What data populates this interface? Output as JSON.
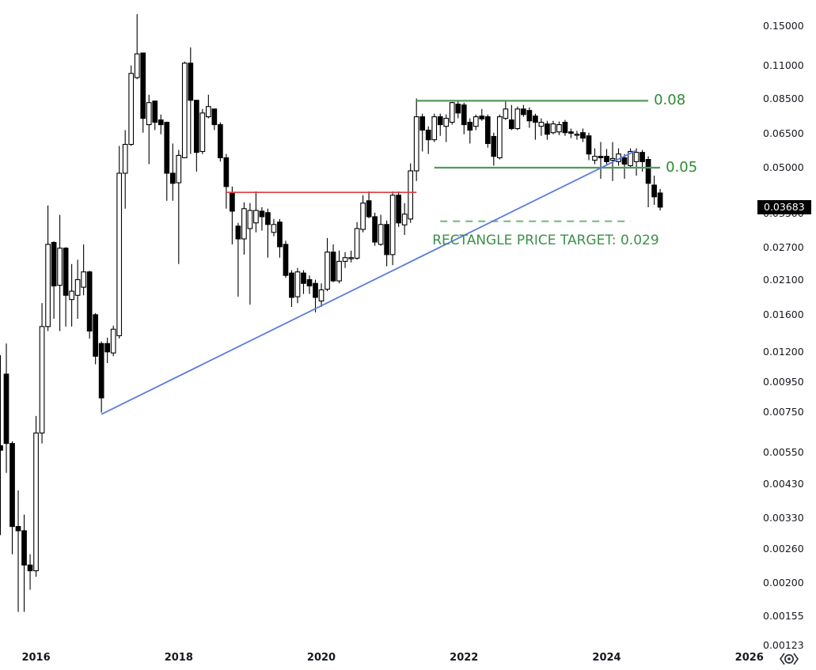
{
  "chart_data": {
    "type": "candlestick",
    "scale": "logarithmic",
    "background": "#ffffff",
    "price_axis": {
      "labels": [
        "0.15000",
        "0.11000",
        "0.08500",
        "0.06500",
        "0.05000",
        "0.03500",
        "0.02700",
        "0.02100",
        "0.01600",
        "0.01200",
        "0.00950",
        "0.00750",
        "0.00550",
        "0.00430",
        "0.00330",
        "0.00260",
        "0.00200",
        "0.00155",
        "0.00123"
      ],
      "last_price": "0.03683",
      "last_price_bg": "#000000",
      "last_price_fg": "#ffffff"
    },
    "time_axis": {
      "labels": [
        "2016",
        "2018",
        "2020",
        "2022",
        "2024",
        "2026"
      ]
    },
    "colors": {
      "bull_fill": "#ffffff",
      "bear_fill": "#000000",
      "outline": "#000000",
      "green_line": "#4f9c58",
      "green_label_text": "#2e8b34",
      "green_dashed": "#80bd88",
      "green_target_text": "#3d9048",
      "red_line": "#e23b41",
      "blue_line": "#5b7ce2"
    },
    "candles": [
      [
        "2015-07",
        0.0058,
        0.0117,
        0.0029,
        0.0056
      ],
      [
        "2015-08",
        0.0101,
        0.0128,
        0.0047,
        0.0059
      ],
      [
        "2015-09",
        0.0059,
        0.006,
        0.0025,
        0.0031
      ],
      [
        "2015-10",
        0.0031,
        0.0041,
        0.0016,
        0.003
      ],
      [
        "2015-11",
        0.003,
        0.0034,
        0.0016,
        0.0023
      ],
      [
        "2015-12",
        0.0023,
        0.0025,
        0.0019,
        0.0022
      ],
      [
        "2016-01",
        0.0022,
        0.0073,
        0.0021,
        0.0064
      ],
      [
        "2016-02",
        0.0064,
        0.0175,
        0.0059,
        0.0146
      ],
      [
        "2016-03",
        0.0146,
        0.0373,
        0.0141,
        0.0276
      ],
      [
        "2016-04",
        0.028,
        0.0283,
        0.0155,
        0.02
      ],
      [
        "2016-05",
        0.0201,
        0.0347,
        0.0141,
        0.0268
      ],
      [
        "2016-06",
        0.0268,
        0.027,
        0.0146,
        0.0186
      ],
      [
        "2016-07",
        0.018,
        0.0237,
        0.0146,
        0.0192
      ],
      [
        "2016-08",
        0.0186,
        0.0245,
        0.0155,
        0.021
      ],
      [
        "2016-09",
        0.0198,
        0.0276,
        0.0186,
        0.0223
      ],
      [
        "2016-10",
        0.0223,
        0.0225,
        0.0133,
        0.0141
      ],
      [
        "2016-11",
        0.016,
        0.0162,
        0.0109,
        0.0116
      ],
      [
        "2016-12",
        0.0128,
        0.013,
        0.0075,
        0.0084
      ],
      [
        "2017-01",
        0.0128,
        0.0134,
        0.011,
        0.012
      ],
      [
        "2017-02",
        0.0119,
        0.0147,
        0.0116,
        0.0143
      ],
      [
        "2017-03",
        0.0136,
        0.0592,
        0.0133,
        0.0479
      ],
      [
        "2017-04",
        0.0479,
        0.0669,
        0.0364,
        0.0599
      ],
      [
        "2017-05",
        0.0599,
        0.1104,
        0.0592,
        0.1038
      ],
      [
        "2017-06",
        0.1005,
        0.1644,
        0.0993,
        0.1208
      ],
      [
        "2017-07",
        0.1216,
        0.122,
        0.0656,
        0.0733
      ],
      [
        "2017-08",
        0.0698,
        0.088,
        0.0514,
        0.0828
      ],
      [
        "2017-09",
        0.0838,
        0.084,
        0.0669,
        0.0711
      ],
      [
        "2017-10",
        0.0724,
        0.0755,
        0.0648,
        0.0698
      ],
      [
        "2017-11",
        0.0711,
        0.0715,
        0.0387,
        0.0479
      ],
      [
        "2017-12",
        0.0479,
        0.0603,
        0.0387,
        0.0443
      ],
      [
        "2018-01",
        0.0445,
        0.0574,
        0.0237,
        0.055
      ],
      [
        "2018-02",
        0.054,
        0.1138,
        0.0538,
        0.1124
      ],
      [
        "2018-03",
        0.1124,
        0.127,
        0.0556,
        0.0843
      ],
      [
        "2018-04",
        0.0843,
        0.0845,
        0.0485,
        0.0563
      ],
      [
        "2018-05",
        0.0567,
        0.0788,
        0.0556,
        0.0764
      ],
      [
        "2018-06",
        0.0742,
        0.088,
        0.0733,
        0.0803
      ],
      [
        "2018-07",
        0.0788,
        0.079,
        0.0669,
        0.0698
      ],
      [
        "2018-08",
        0.0698,
        0.0711,
        0.0524,
        0.054
      ],
      [
        "2018-09",
        0.054,
        0.0556,
        0.0364,
        0.0432
      ],
      [
        "2018-10",
        0.0411,
        0.0432,
        0.0276,
        0.0357
      ],
      [
        "2018-11",
        0.0318,
        0.0326,
        0.0184,
        0.0288
      ],
      [
        "2018-12",
        0.0288,
        0.0382,
        0.0255,
        0.0364
      ],
      [
        "2019-01",
        0.0312,
        0.038,
        0.0173,
        0.0359
      ],
      [
        "2019-02",
        0.0326,
        0.0416,
        0.0303,
        0.0359
      ],
      [
        "2019-03",
        0.0357,
        0.0368,
        0.0307,
        0.0342
      ],
      [
        "2019-04",
        0.0353,
        0.0364,
        0.0249,
        0.0322
      ],
      [
        "2019-05",
        0.0303,
        0.0336,
        0.0294,
        0.0322
      ],
      [
        "2019-06",
        0.0328,
        0.0336,
        0.0249,
        0.0271
      ],
      [
        "2019-07",
        0.0276,
        0.0284,
        0.0213,
        0.0217
      ],
      [
        "2019-08",
        0.0221,
        0.0226,
        0.017,
        0.0183
      ],
      [
        "2019-09",
        0.0184,
        0.023,
        0.0175,
        0.0223
      ],
      [
        "2019-10",
        0.0221,
        0.0226,
        0.0188,
        0.0204
      ],
      [
        "2019-11",
        0.021,
        0.0217,
        0.0188,
        0.02
      ],
      [
        "2019-12",
        0.0204,
        0.021,
        0.0163,
        0.0183
      ],
      [
        "2020-01",
        0.0178,
        0.0204,
        0.017,
        0.0194
      ],
      [
        "2020-02",
        0.0195,
        0.029,
        0.0192,
        0.026
      ],
      [
        "2020-03",
        0.026,
        0.0276,
        0.0206,
        0.0208
      ],
      [
        "2020-04",
        0.0208,
        0.0263,
        0.0204,
        0.0242
      ],
      [
        "2020-05",
        0.0242,
        0.026,
        0.023,
        0.0249
      ],
      [
        "2020-06",
        0.0247,
        0.0263,
        0.024,
        0.0249
      ],
      [
        "2020-07",
        0.0248,
        0.0328,
        0.0245,
        0.0312
      ],
      [
        "2020-08",
        0.031,
        0.0404,
        0.0303,
        0.038
      ],
      [
        "2020-09",
        0.0387,
        0.0416,
        0.0338,
        0.0342
      ],
      [
        "2020-10",
        0.0342,
        0.0353,
        0.0273,
        0.0281
      ],
      [
        "2020-11",
        0.0276,
        0.0347,
        0.0273,
        0.0322
      ],
      [
        "2020-12",
        0.0322,
        0.0332,
        0.0233,
        0.0255
      ],
      [
        "2021-01",
        0.0255,
        0.0416,
        0.0235,
        0.0404
      ],
      [
        "2021-02",
        0.0404,
        0.0416,
        0.0316,
        0.0326
      ],
      [
        "2021-03",
        0.0321,
        0.038,
        0.0297,
        0.0349
      ],
      [
        "2021-04",
        0.0336,
        0.0517,
        0.0326,
        0.0488
      ],
      [
        "2021-05",
        0.0488,
        0.0855,
        0.0451,
        0.0742
      ],
      [
        "2021-06",
        0.0742,
        0.076,
        0.0567,
        0.0669
      ],
      [
        "2021-07",
        0.0669,
        0.0689,
        0.0556,
        0.0621
      ],
      [
        "2021-08",
        0.0621,
        0.076,
        0.061,
        0.0742
      ],
      [
        "2021-09",
        0.0742,
        0.076,
        0.064,
        0.0698
      ],
      [
        "2021-10",
        0.0689,
        0.0755,
        0.061,
        0.0733
      ],
      [
        "2021-11",
        0.0711,
        0.0832,
        0.0698,
        0.0828
      ],
      [
        "2021-12",
        0.0818,
        0.0838,
        0.0733,
        0.0764
      ],
      [
        "2022-01",
        0.0813,
        0.0828,
        0.0648,
        0.0698
      ],
      [
        "2022-02",
        0.0711,
        0.0733,
        0.0603,
        0.0669
      ],
      [
        "2022-03",
        0.0689,
        0.0755,
        0.0669,
        0.0742
      ],
      [
        "2022-04",
        0.0746,
        0.0788,
        0.0719,
        0.073
      ],
      [
        "2022-05",
        0.0742,
        0.0755,
        0.0584,
        0.0603
      ],
      [
        "2022-06",
        0.0637,
        0.0656,
        0.0508,
        0.0546
      ],
      [
        "2022-07",
        0.054,
        0.0755,
        0.0533,
        0.0742
      ],
      [
        "2022-08",
        0.0733,
        0.0838,
        0.0724,
        0.0788
      ],
      [
        "2022-09",
        0.0724,
        0.0813,
        0.0669,
        0.0677
      ],
      [
        "2022-10",
        0.0677,
        0.0803,
        0.0669,
        0.0788
      ],
      [
        "2022-11",
        0.0788,
        0.0813,
        0.0742,
        0.0755
      ],
      [
        "2022-12",
        0.0779,
        0.0798,
        0.0681,
        0.0719
      ],
      [
        "2023-01",
        0.0746,
        0.076,
        0.0621,
        0.0711
      ],
      [
        "2023-02",
        0.0689,
        0.0733,
        0.064,
        0.0711
      ],
      [
        "2023-03",
        0.0702,
        0.0719,
        0.0621,
        0.0648
      ],
      [
        "2023-04",
        0.0656,
        0.0719,
        0.0648,
        0.0702
      ],
      [
        "2023-05",
        0.066,
        0.0715,
        0.0644,
        0.0698
      ],
      [
        "2023-06",
        0.0711,
        0.0724,
        0.064,
        0.0656
      ],
      [
        "2023-07",
        0.066,
        0.0677,
        0.0629,
        0.0653
      ],
      [
        "2023-08",
        0.0645,
        0.0665,
        0.0621,
        0.0648
      ],
      [
        "2023-09",
        0.0656,
        0.0677,
        0.061,
        0.0629
      ],
      [
        "2023-10",
        0.064,
        0.0656,
        0.053,
        0.0556
      ],
      [
        "2023-11",
        0.053,
        0.0581,
        0.0514,
        0.0546
      ],
      [
        "2023-12",
        0.0546,
        0.061,
        0.0459,
        0.054
      ],
      [
        "2024-01",
        0.0546,
        0.0578,
        0.0514,
        0.0524
      ],
      [
        "2024-02",
        0.053,
        0.061,
        0.0451,
        0.0537
      ],
      [
        "2024-03",
        0.0524,
        0.0581,
        0.0508,
        0.0556
      ],
      [
        "2024-04",
        0.054,
        0.0556,
        0.0459,
        0.0514
      ],
      [
        "2024-05",
        0.0508,
        0.0581,
        0.05,
        0.0567
      ],
      [
        "2024-06",
        0.0524,
        0.0581,
        0.047,
        0.0563
      ],
      [
        "2024-07",
        0.0563,
        0.0574,
        0.0485,
        0.0524
      ],
      [
        "2024-08",
        0.0533,
        0.0546,
        0.0368,
        0.0443
      ],
      [
        "2024-09",
        0.0437,
        0.047,
        0.0375,
        0.0399
      ],
      [
        "2024-10",
        0.0411,
        0.0424,
        0.0359,
        0.03683
      ]
    ],
    "drawings": [
      {
        "type": "horizontal-line",
        "name": "resistance-line",
        "label": "0.08",
        "price": 0.084,
        "from": "2021-05",
        "to": "2024-08",
        "color": "#4f9c58",
        "style": "solid",
        "weight": 2.2
      },
      {
        "type": "horizontal-line",
        "name": "support-line",
        "label": "0.05",
        "price": 0.05,
        "from": "2021-08",
        "to": "2024-10",
        "color": "#4f9c58",
        "style": "solid",
        "weight": 2.2
      },
      {
        "type": "horizontal-line",
        "name": "red-resistance-line",
        "label": "",
        "price": 0.0413,
        "from": "2018-09",
        "to": "2021-05",
        "color": "#e23b41",
        "style": "solid",
        "weight": 1.6
      },
      {
        "type": "horizontal-line",
        "name": "target-dashed-line",
        "label": "",
        "price": 0.033,
        "from": "2021-09",
        "to": "2024-05",
        "color": "#80bd88",
        "style": "dashed",
        "weight": 2.2
      },
      {
        "type": "trend-line",
        "name": "ascending-trendline",
        "x1": "2016-12",
        "p1": 0.0074,
        "x2": "2024-06",
        "p2": 0.0572,
        "color": "#5b7ce2",
        "style": "solid",
        "weight": 1.8
      }
    ],
    "annotations": {
      "price_target_text": "RECTANGLE PRICE TARGET: 0.029",
      "price_target_anchor": "2021-07",
      "price_target_price": 0.0305
    }
  }
}
